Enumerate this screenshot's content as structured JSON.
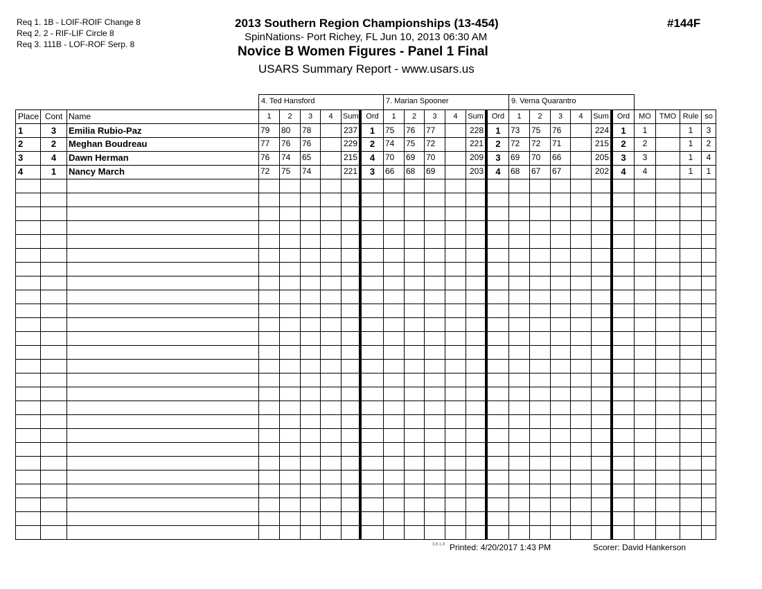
{
  "requirements": [
    "Req  1.  1B - LOIF-ROIF Change 8",
    "Req  2.  2 - RIF-LIF Circle 8",
    "Req  3.  111B - LOF-ROF Serp. 8"
  ],
  "header": {
    "title": "2013 Southern Region Championships (13-454)",
    "subtitle": "SpinNations- Port Richey, FL  Jun 10, 2013  06:30 AM",
    "event": "Novice B Women Figures - Panel 1 Final",
    "report": "USARS Summary Report - www.usars.us",
    "event_number": "#144F"
  },
  "judges": [
    "4.  Ted Hansford",
    "7.  Marian Spooner",
    "9.  Verna Quarantro"
  ],
  "columns": [
    "Place",
    "Cont",
    "Name",
    "1",
    "2",
    "3",
    "4",
    "Sum",
    "Ord",
    "1",
    "2",
    "3",
    "4",
    "Sum",
    "Ord",
    "1",
    "2",
    "3",
    "4",
    "Sum",
    "Ord",
    "MO",
    "TMO",
    "Rule",
    "so"
  ],
  "rows": [
    [
      "1",
      "3",
      "Emilia Rubio-Paz",
      "79",
      "80",
      "78",
      "",
      "237",
      "1",
      "75",
      "76",
      "77",
      "",
      "228",
      "1",
      "73",
      "75",
      "76",
      "",
      "224",
      "1",
      "1",
      "",
      "1",
      "3"
    ],
    [
      "2",
      "2",
      "Meghan Boudreau",
      "77",
      "76",
      "76",
      "",
      "229",
      "2",
      "74",
      "75",
      "72",
      "",
      "221",
      "2",
      "72",
      "72",
      "71",
      "",
      "215",
      "2",
      "2",
      "",
      "1",
      "2"
    ],
    [
      "3",
      "4",
      "Dawn Herman",
      "76",
      "74",
      "65",
      "",
      "215",
      "4",
      "70",
      "69",
      "70",
      "",
      "209",
      "3",
      "69",
      "70",
      "66",
      "",
      "205",
      "3",
      "3",
      "",
      "1",
      "4"
    ],
    [
      "4",
      "1",
      "Nancy March",
      "72",
      "75",
      "74",
      "",
      "221",
      "3",
      "66",
      "68",
      "69",
      "",
      "203",
      "4",
      "68",
      "67",
      "67",
      "",
      "202",
      "4",
      "4",
      "",
      "1",
      "1"
    ]
  ],
  "footer": {
    "version": "3.8.1.8",
    "printed": "Printed:  4/20/2017  1:43 PM",
    "scorer": "Scorer:   David Hankerson"
  }
}
